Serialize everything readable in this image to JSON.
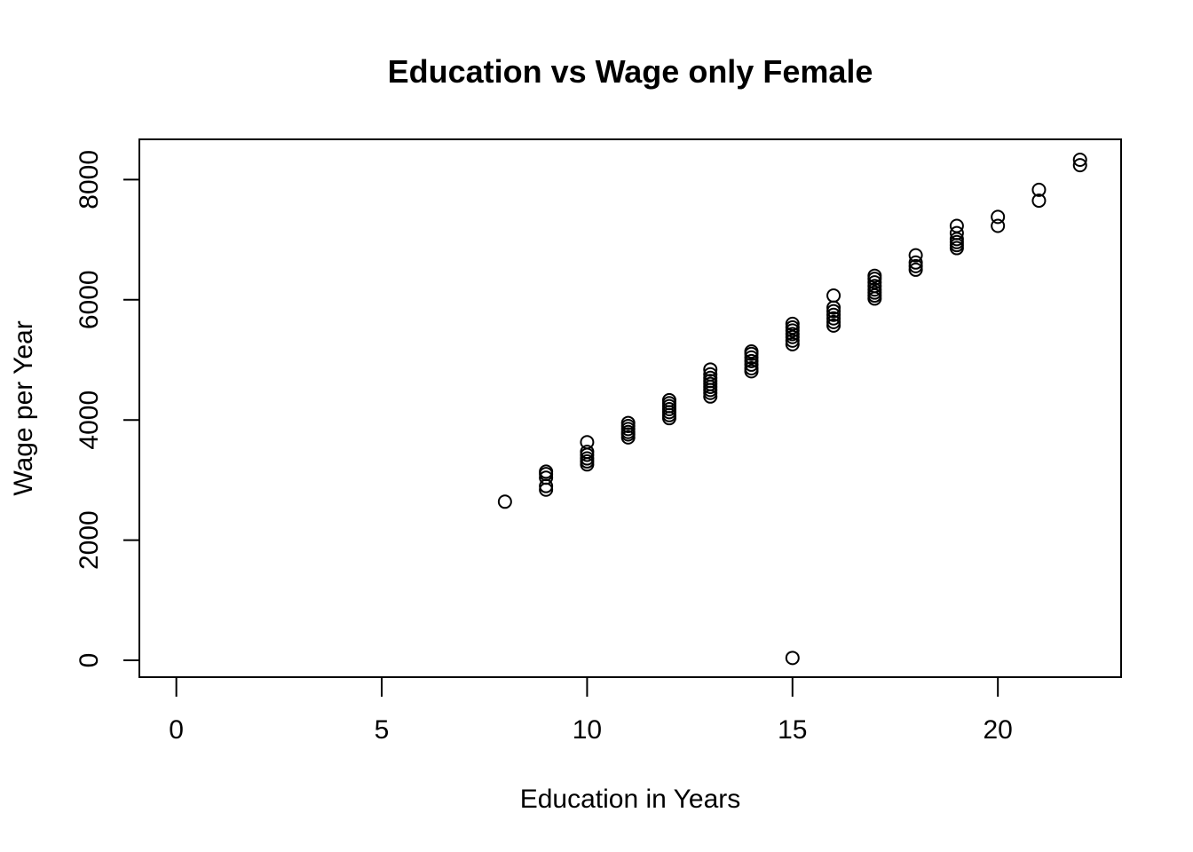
{
  "chart_data": {
    "type": "scatter",
    "title": "Education vs Wage only Female",
    "xlabel": "Education in Years",
    "ylabel": "Wage per Year",
    "xlim": [
      -0.9,
      23
    ],
    "ylim": [
      -280,
      8670
    ],
    "xticks": [
      0,
      5,
      10,
      15,
      20
    ],
    "yticks": [
      0,
      2000,
      4000,
      6000,
      8000
    ],
    "grid": false,
    "legend": "none",
    "marker": "open-circle",
    "color": "#000000",
    "points": [
      {
        "x": 8,
        "y": 2640
      },
      {
        "x": 9,
        "y": 2840
      },
      {
        "x": 9,
        "y": 2900
      },
      {
        "x": 9,
        "y": 3040
      },
      {
        "x": 9,
        "y": 3100
      },
      {
        "x": 9,
        "y": 3140
      },
      {
        "x": 10,
        "y": 3260
      },
      {
        "x": 10,
        "y": 3310
      },
      {
        "x": 10,
        "y": 3360
      },
      {
        "x": 10,
        "y": 3420
      },
      {
        "x": 10,
        "y": 3470
      },
      {
        "x": 10,
        "y": 3630
      },
      {
        "x": 11,
        "y": 3710
      },
      {
        "x": 11,
        "y": 3760
      },
      {
        "x": 11,
        "y": 3800
      },
      {
        "x": 11,
        "y": 3850
      },
      {
        "x": 11,
        "y": 3900
      },
      {
        "x": 11,
        "y": 3950
      },
      {
        "x": 12,
        "y": 4030
      },
      {
        "x": 12,
        "y": 4080
      },
      {
        "x": 12,
        "y": 4130
      },
      {
        "x": 12,
        "y": 4180
      },
      {
        "x": 12,
        "y": 4230
      },
      {
        "x": 12,
        "y": 4280
      },
      {
        "x": 12,
        "y": 4330
      },
      {
        "x": 13,
        "y": 4390
      },
      {
        "x": 13,
        "y": 4450
      },
      {
        "x": 13,
        "y": 4500
      },
      {
        "x": 13,
        "y": 4550
      },
      {
        "x": 13,
        "y": 4600
      },
      {
        "x": 13,
        "y": 4650
      },
      {
        "x": 13,
        "y": 4700
      },
      {
        "x": 13,
        "y": 4760
      },
      {
        "x": 13,
        "y": 4840
      },
      {
        "x": 14,
        "y": 4810
      },
      {
        "x": 14,
        "y": 4860
      },
      {
        "x": 14,
        "y": 4920
      },
      {
        "x": 14,
        "y": 4980
      },
      {
        "x": 14,
        "y": 5040
      },
      {
        "x": 14,
        "y": 5100
      },
      {
        "x": 14,
        "y": 5140
      },
      {
        "x": 15,
        "y": 40
      },
      {
        "x": 15,
        "y": 5260
      },
      {
        "x": 15,
        "y": 5320
      },
      {
        "x": 15,
        "y": 5380
      },
      {
        "x": 15,
        "y": 5430
      },
      {
        "x": 15,
        "y": 5490
      },
      {
        "x": 15,
        "y": 5540
      },
      {
        "x": 15,
        "y": 5600
      },
      {
        "x": 16,
        "y": 5570
      },
      {
        "x": 16,
        "y": 5630
      },
      {
        "x": 16,
        "y": 5690
      },
      {
        "x": 16,
        "y": 5750
      },
      {
        "x": 16,
        "y": 5810
      },
      {
        "x": 16,
        "y": 5870
      },
      {
        "x": 16,
        "y": 6070
      },
      {
        "x": 17,
        "y": 6020
      },
      {
        "x": 17,
        "y": 6070
      },
      {
        "x": 17,
        "y": 6120
      },
      {
        "x": 17,
        "y": 6170
      },
      {
        "x": 17,
        "y": 6230
      },
      {
        "x": 17,
        "y": 6290
      },
      {
        "x": 17,
        "y": 6350
      },
      {
        "x": 17,
        "y": 6400
      },
      {
        "x": 18,
        "y": 6500
      },
      {
        "x": 18,
        "y": 6560
      },
      {
        "x": 18,
        "y": 6620
      },
      {
        "x": 18,
        "y": 6740
      },
      {
        "x": 19,
        "y": 6860
      },
      {
        "x": 19,
        "y": 6910
      },
      {
        "x": 19,
        "y": 6960
      },
      {
        "x": 19,
        "y": 7010
      },
      {
        "x": 19,
        "y": 7110
      },
      {
        "x": 19,
        "y": 7230
      },
      {
        "x": 20,
        "y": 7230
      },
      {
        "x": 20,
        "y": 7380
      },
      {
        "x": 21,
        "y": 7650
      },
      {
        "x": 21,
        "y": 7830
      },
      {
        "x": 22,
        "y": 8240
      },
      {
        "x": 22,
        "y": 8330
      }
    ]
  }
}
